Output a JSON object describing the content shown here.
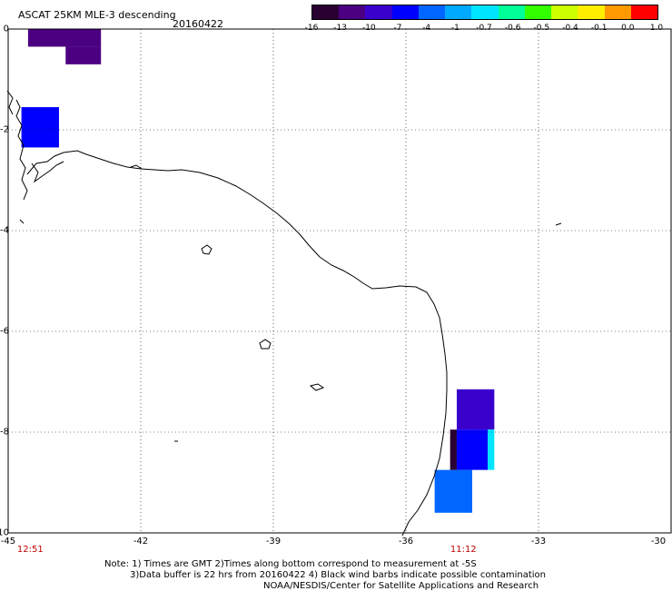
{
  "title": "ASCAT 25KM MLE-3 descending",
  "date": "20160422",
  "colorbar": {
    "ticks": [
      "-16",
      "-13",
      "-10",
      "-7",
      "-4",
      "-1",
      "-0.7",
      "-0.6",
      "-0.5",
      "-0.4",
      "-0.1",
      "0.0",
      "1.0"
    ],
    "colors": [
      "#2a0033",
      "#4b0082",
      "#3a00cc",
      "#0000ff",
      "#0066ff",
      "#00aaff",
      "#00e5ff",
      "#00ff99",
      "#33ff00",
      "#ccff00",
      "#ffee00",
      "#ff9900",
      "#ff0000"
    ]
  },
  "axes": {
    "x_ticks": [
      "-45",
      "-42",
      "-39",
      "-36",
      "-33",
      "-30"
    ],
    "y_ticks": [
      "0",
      "-2",
      "-4",
      "-6",
      "-8",
      "-10"
    ],
    "xlim": [
      -45,
      -30
    ],
    "ylim": [
      -10,
      0
    ]
  },
  "times": [
    {
      "label": "12:51",
      "lon": -44.5
    },
    {
      "label": "11:12",
      "lon": -34.7
    }
  ],
  "notes": [
    "Note: 1) Times are GMT 2)Times along bottom correspond to measurement at -5S",
    "3)Data buffer is 22 hrs from 20160422 4) Black wind barbs indicate possible contamination",
    "NOAA/NESDIS/Center for Satellite Applications and Research"
  ],
  "data_cells": [
    {
      "lon0": -44.55,
      "lon1": -42.9,
      "lat0": -0.35,
      "lat1": 0,
      "color": "#4b0082"
    },
    {
      "lon0": -43.7,
      "lon1": -42.9,
      "lat0": -0.7,
      "lat1": -0.35,
      "color": "#4b0082"
    },
    {
      "lon0": -44.7,
      "lon1": -43.85,
      "lat0": -2.35,
      "lat1": -1.55,
      "color": "#0000ff"
    },
    {
      "lon0": -34.85,
      "lon1": -34.0,
      "lat0": -7.95,
      "lat1": -7.15,
      "color": "#3a00cc"
    },
    {
      "lon0": -35.0,
      "lon1": -34.85,
      "lat0": -8.75,
      "lat1": -7.95,
      "color": "#2a0033"
    },
    {
      "lon0": -34.85,
      "lon1": -34.15,
      "lat0": -8.75,
      "lat1": -7.95,
      "color": "#0000ff"
    },
    {
      "lon0": -34.15,
      "lon1": -34.0,
      "lat0": -8.75,
      "lat1": -7.95,
      "color": "#00e5ff"
    },
    {
      "lon0": -35.35,
      "lon1": -34.5,
      "lat0": -9.6,
      "lat1": -8.75,
      "color": "#0066ff"
    }
  ]
}
